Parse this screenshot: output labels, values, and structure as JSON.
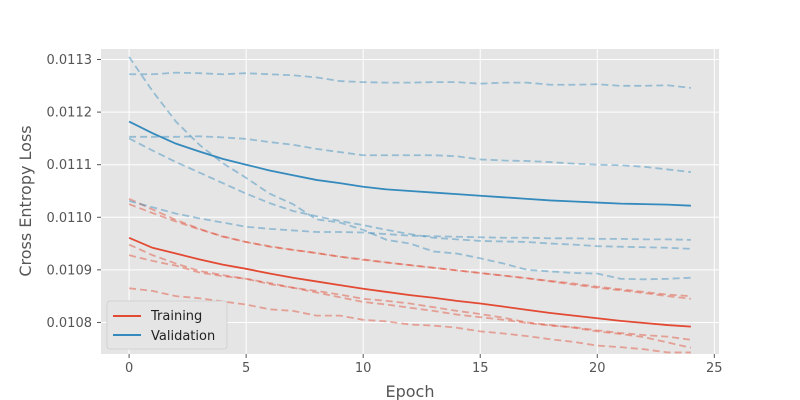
{
  "chart_data": {
    "type": "line",
    "title": "",
    "xlabel": "Epoch",
    "ylabel": "Cross Entropy Loss",
    "xlim": [
      -1.2,
      25.2
    ],
    "ylim": [
      0.01074,
      0.01132
    ],
    "xticks": [
      0,
      5,
      10,
      15,
      20,
      25
    ],
    "xtick_labels": [
      "0",
      "5",
      "10",
      "15",
      "20",
      "25"
    ],
    "yticks": [
      0.0108,
      0.0109,
      0.011,
      0.0111,
      0.0112,
      0.0113
    ],
    "ytick_labels": [
      "0.0108",
      "0.0109",
      "0.0110",
      "0.0111",
      "0.0112",
      "0.0113"
    ],
    "grid": true,
    "background": "#e5e5e5",
    "legend_position": "lower-left",
    "colors": {
      "training": "#e24a33",
      "validation": "#348abd",
      "grid": "#ffffff",
      "plot_bg": "#e5e5e5"
    },
    "legend": [
      {
        "label": "Training",
        "color": "#e24a33"
      },
      {
        "label": "Validation",
        "color": "#348abd"
      }
    ],
    "x": [
      0,
      1,
      2,
      3,
      4,
      5,
      6,
      7,
      8,
      9,
      10,
      11,
      12,
      13,
      14,
      15,
      16,
      17,
      18,
      19,
      20,
      21,
      22,
      23,
      24
    ],
    "series": [
      {
        "name": "Training",
        "group": "training",
        "style": "solid",
        "values": [
          0.010961,
          0.010942,
          0.010931,
          0.01092,
          0.01091,
          0.010902,
          0.010893,
          0.010885,
          0.010878,
          0.010871,
          0.010864,
          0.010858,
          0.010852,
          0.010847,
          0.010841,
          0.010836,
          0.01083,
          0.010824,
          0.010818,
          0.010813,
          0.010808,
          0.010803,
          0.010799,
          0.010795,
          0.010792
        ]
      },
      {
        "name": "Validation",
        "group": "validation",
        "style": "solid",
        "values": [
          0.011182,
          0.01116,
          0.01114,
          0.011125,
          0.011111,
          0.0111,
          0.011089,
          0.01108,
          0.011071,
          0.011065,
          0.011058,
          0.011053,
          0.01105,
          0.011047,
          0.011044,
          0.011041,
          0.011038,
          0.011035,
          0.011032,
          0.01103,
          0.011028,
          0.011026,
          0.011025,
          0.011024,
          0.011022
        ]
      },
      {
        "group": "training",
        "style": "dashed",
        "values": [
          0.011035,
          0.011015,
          0.010995,
          0.010978,
          0.010963,
          0.010953,
          0.010945,
          0.010938,
          0.010932,
          0.010925,
          0.010919,
          0.010914,
          0.010909,
          0.010904,
          0.010899,
          0.010894,
          0.010889,
          0.010884,
          0.010878,
          0.010872,
          0.010866,
          0.010861,
          0.010856,
          0.01085,
          0.010845
        ]
      },
      {
        "group": "training",
        "style": "dashed",
        "values": [
          0.011025,
          0.011008,
          0.010992,
          0.010977,
          0.010964,
          0.010953,
          0.010944,
          0.010938,
          0.010932,
          0.010925,
          0.01092,
          0.010914,
          0.010909,
          0.010904,
          0.010899,
          0.010894,
          0.010889,
          0.010884,
          0.010879,
          0.010874,
          0.010868,
          0.010863,
          0.010858,
          0.010853,
          0.01085
        ]
      },
      {
        "group": "training",
        "style": "dashed",
        "values": [
          0.010948,
          0.010928,
          0.010912,
          0.010898,
          0.01089,
          0.010883,
          0.010875,
          0.010866,
          0.01086,
          0.010853,
          0.010845,
          0.010841,
          0.010836,
          0.010829,
          0.010822,
          0.010816,
          0.010809,
          0.0108,
          0.010795,
          0.01079,
          0.010783,
          0.010778,
          0.010772,
          0.010762,
          0.010752
        ]
      },
      {
        "group": "training",
        "style": "dashed",
        "values": [
          0.010928,
          0.010917,
          0.010908,
          0.010895,
          0.010888,
          0.010883,
          0.010873,
          0.010866,
          0.010857,
          0.010848,
          0.010839,
          0.010834,
          0.010828,
          0.010822,
          0.010815,
          0.01081,
          0.010805,
          0.010799,
          0.010794,
          0.010791,
          0.010785,
          0.01078,
          0.010776,
          0.010773,
          0.010767
        ]
      },
      {
        "group": "training",
        "style": "dashed",
        "values": [
          0.010865,
          0.01086,
          0.01085,
          0.010846,
          0.01084,
          0.010834,
          0.010825,
          0.010822,
          0.010813,
          0.010813,
          0.010805,
          0.010802,
          0.010796,
          0.010794,
          0.01079,
          0.010783,
          0.010779,
          0.010774,
          0.010768,
          0.010763,
          0.010756,
          0.010753,
          0.010749,
          0.010743,
          0.010743
        ]
      },
      {
        "group": "validation",
        "style": "dashed",
        "values": [
          0.011305,
          0.01124,
          0.011182,
          0.011138,
          0.011103,
          0.011075,
          0.011045,
          0.011025,
          0.010996,
          0.01099,
          0.010976,
          0.010957,
          0.01095,
          0.010935,
          0.010931,
          0.010922,
          0.010912,
          0.0109,
          0.010897,
          0.010894,
          0.010893,
          0.010883,
          0.010882,
          0.010883,
          0.010885
        ]
      },
      {
        "group": "validation",
        "style": "dashed",
        "values": [
          0.011272,
          0.011272,
          0.011275,
          0.011274,
          0.011272,
          0.011274,
          0.011272,
          0.01127,
          0.011266,
          0.011259,
          0.011257,
          0.011256,
          0.011256,
          0.011257,
          0.011257,
          0.011254,
          0.011256,
          0.011256,
          0.011252,
          0.011252,
          0.011253,
          0.01125,
          0.01125,
          0.011251,
          0.011246
        ]
      },
      {
        "group": "validation",
        "style": "dashed",
        "values": [
          0.011153,
          0.011153,
          0.011153,
          0.011154,
          0.011152,
          0.011149,
          0.011143,
          0.011138,
          0.01113,
          0.011124,
          0.011118,
          0.011118,
          0.011118,
          0.011118,
          0.011116,
          0.01111,
          0.011108,
          0.011107,
          0.011105,
          0.011102,
          0.0111,
          0.011099,
          0.011096,
          0.011091,
          0.011086
        ]
      },
      {
        "group": "validation",
        "style": "dashed",
        "values": [
          0.01115,
          0.011127,
          0.011105,
          0.011085,
          0.011065,
          0.011045,
          0.011027,
          0.011012,
          0.011002,
          0.010993,
          0.010985,
          0.010976,
          0.010968,
          0.010961,
          0.010958,
          0.010955,
          0.010954,
          0.010953,
          0.01095,
          0.010948,
          0.010945,
          0.010944,
          0.010943,
          0.010942,
          0.01094
        ]
      },
      {
        "group": "validation",
        "style": "dashed",
        "values": [
          0.011031,
          0.011019,
          0.011007,
          0.010998,
          0.01099,
          0.010982,
          0.010978,
          0.010975,
          0.010972,
          0.010972,
          0.010971,
          0.010968,
          0.010965,
          0.010964,
          0.010963,
          0.010962,
          0.010961,
          0.010961,
          0.01096,
          0.01096,
          0.010959,
          0.010959,
          0.010958,
          0.010958,
          0.010957
        ]
      }
    ]
  }
}
